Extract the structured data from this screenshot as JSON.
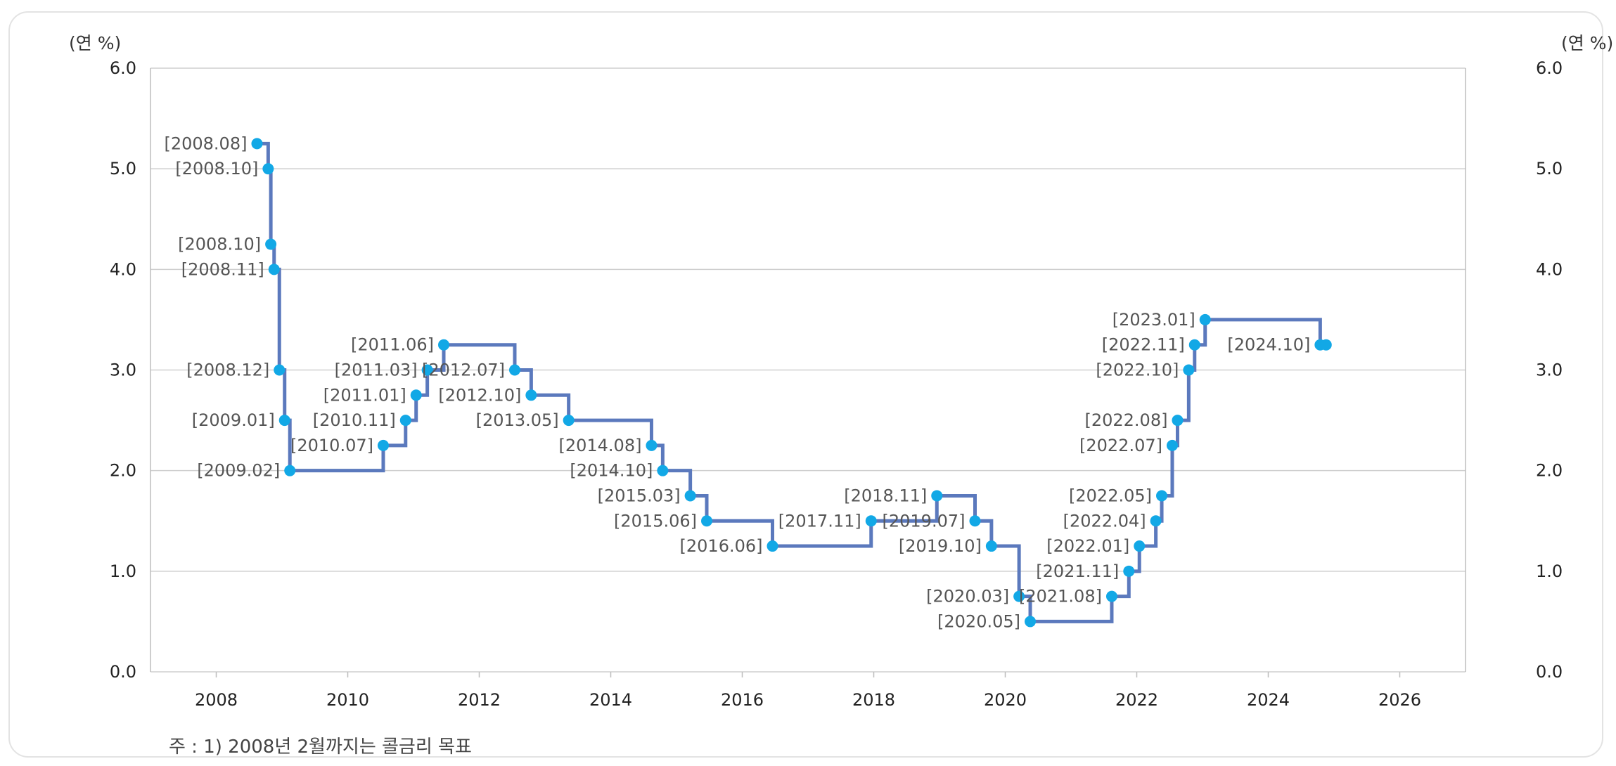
{
  "chart_data": {
    "type": "line",
    "subtype": "step",
    "title": "",
    "ylabel_left": "(연 %)",
    "ylabel_right": "(연 %)",
    "xlim": [
      2007,
      2027
    ],
    "ylim": [
      0,
      6
    ],
    "x_ticks": [
      "2008",
      "2010",
      "2012",
      "2014",
      "2016",
      "2018",
      "2020",
      "2022",
      "2024",
      "2026"
    ],
    "y_ticks": [
      "0.0",
      "1.0",
      "2.0",
      "3.0",
      "4.0",
      "5.0",
      "6.0"
    ],
    "grid": true,
    "legend": "none",
    "colors": {
      "line": "#5b79bd",
      "point": "#12a8e6",
      "grid": "#cfcfcf"
    },
    "points": [
      {
        "label": "[2008.08]",
        "x": 2008.62,
        "y": 5.25
      },
      {
        "label": "[2008.10]",
        "x": 2008.79,
        "y": 5.0
      },
      {
        "label": "[2008.10]",
        "x": 2008.83,
        "y": 4.25
      },
      {
        "label": "[2008.11]",
        "x": 2008.88,
        "y": 4.0
      },
      {
        "label": "[2008.12]",
        "x": 2008.96,
        "y": 3.0
      },
      {
        "label": "[2009.01]",
        "x": 2009.04,
        "y": 2.5
      },
      {
        "label": "[2009.02]",
        "x": 2009.12,
        "y": 2.0
      },
      {
        "label": "[2010.07]",
        "x": 2010.54,
        "y": 2.25
      },
      {
        "label": "[2010.11]",
        "x": 2010.88,
        "y": 2.5
      },
      {
        "label": "[2011.01]",
        "x": 2011.04,
        "y": 2.75
      },
      {
        "label": "[2011.03]",
        "x": 2011.21,
        "y": 3.0
      },
      {
        "label": "[2011.06]",
        "x": 2011.46,
        "y": 3.25
      },
      {
        "label": "[2012.07]",
        "x": 2012.54,
        "y": 3.0
      },
      {
        "label": "[2012.10]",
        "x": 2012.79,
        "y": 2.75
      },
      {
        "label": "[2013.05]",
        "x": 2013.36,
        "y": 2.5
      },
      {
        "label": "[2014.08]",
        "x": 2014.62,
        "y": 2.25
      },
      {
        "label": "[2014.10]",
        "x": 2014.79,
        "y": 2.0
      },
      {
        "label": "[2015.03]",
        "x": 2015.21,
        "y": 1.75
      },
      {
        "label": "[2015.06]",
        "x": 2015.46,
        "y": 1.5
      },
      {
        "label": "[2016.06]",
        "x": 2016.46,
        "y": 1.25
      },
      {
        "label": "[2017.11]",
        "x": 2017.96,
        "y": 1.5
      },
      {
        "label": "[2018.11]",
        "x": 2018.96,
        "y": 1.75
      },
      {
        "label": "[2019.07]",
        "x": 2019.54,
        "y": 1.5
      },
      {
        "label": "[2019.10]",
        "x": 2019.79,
        "y": 1.25
      },
      {
        "label": "[2020.03]",
        "x": 2020.21,
        "y": 0.75
      },
      {
        "label": "[2020.05]",
        "x": 2020.38,
        "y": 0.5
      },
      {
        "label": "[2021.08]",
        "x": 2021.62,
        "y": 0.75
      },
      {
        "label": "[2021.11]",
        "x": 2021.88,
        "y": 1.0
      },
      {
        "label": "[2022.01]",
        "x": 2022.04,
        "y": 1.25
      },
      {
        "label": "[2022.04]",
        "x": 2022.29,
        "y": 1.5
      },
      {
        "label": "[2022.05]",
        "x": 2022.38,
        "y": 1.75
      },
      {
        "label": "[2022.07]",
        "x": 2022.54,
        "y": 2.25
      },
      {
        "label": "[2022.08]",
        "x": 2022.62,
        "y": 2.5
      },
      {
        "label": "[2022.10]",
        "x": 2022.79,
        "y": 3.0
      },
      {
        "label": "[2022.11]",
        "x": 2022.88,
        "y": 3.25
      },
      {
        "label": "[2023.01]",
        "x": 2023.04,
        "y": 3.5
      },
      {
        "label": "[2024.10]",
        "x": 2024.79,
        "y": 3.25
      }
    ],
    "end_point": {
      "x": 2024.88,
      "y": 3.25
    }
  },
  "footnote": "주 : 1) 2008년 2월까지는 콜금리 목표"
}
